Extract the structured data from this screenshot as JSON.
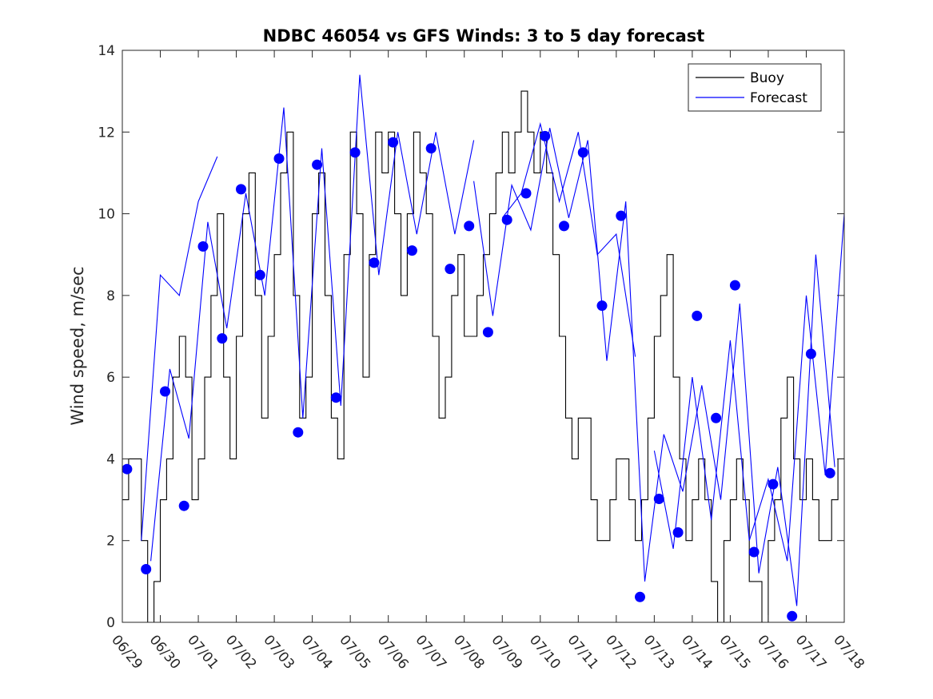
{
  "chart_data": {
    "type": "line",
    "title": "NDBC 46054 vs GFS Winds: 3 to 5 day forecast",
    "xlabel": "",
    "ylabel": "Wind speed, m/sec",
    "x_unit": "date",
    "xlim": [
      "06/29 00:00",
      "07/18 00:00"
    ],
    "ylim": [
      0,
      14
    ],
    "x_ticks": [
      "06/29",
      "06/30",
      "07/01",
      "07/02",
      "07/03",
      "07/04",
      "07/05",
      "07/06",
      "07/07",
      "07/08",
      "07/09",
      "07/10",
      "07/11",
      "07/12",
      "07/13",
      "07/14",
      "07/15",
      "07/16",
      "07/17",
      "07/18"
    ],
    "y_ticks": [
      0,
      2,
      4,
      6,
      8,
      10,
      12,
      14
    ],
    "grid": false,
    "legend": {
      "position": "top-right",
      "entries": [
        "Buoy",
        "Forecast"
      ]
    },
    "colors": {
      "buoy": "#000000",
      "forecast": "#0000ff"
    },
    "series": [
      {
        "name": "Buoy",
        "style": "black stepped line (hourly, 1 m/s resolution)",
        "x": [
          "06/29 00:00",
          "06/29 04:00",
          "06/29 08:00",
          "06/29 12:00",
          "06/29 16:00",
          "06/29 20:00",
          "06/30 00:00",
          "06/30 04:00",
          "06/30 08:00",
          "06/30 12:00",
          "06/30 16:00",
          "06/30 20:00",
          "07/01 00:00",
          "07/01 04:00",
          "07/01 08:00",
          "07/01 12:00",
          "07/01 16:00",
          "07/01 20:00",
          "07/02 00:00",
          "07/02 04:00",
          "07/02 08:00",
          "07/02 12:00",
          "07/02 16:00",
          "07/02 20:00",
          "07/03 00:00",
          "07/03 04:00",
          "07/03 08:00",
          "07/03 12:00",
          "07/03 16:00",
          "07/03 20:00",
          "07/04 00:00",
          "07/04 04:00",
          "07/04 08:00",
          "07/04 12:00",
          "07/04 16:00",
          "07/04 20:00",
          "07/05 00:00",
          "07/05 04:00",
          "07/05 08:00",
          "07/05 12:00",
          "07/05 16:00",
          "07/05 20:00",
          "07/06 00:00",
          "07/06 04:00",
          "07/06 08:00",
          "07/06 12:00",
          "07/06 16:00",
          "07/06 20:00",
          "07/07 00:00",
          "07/07 04:00",
          "07/07 08:00",
          "07/07 12:00",
          "07/07 16:00",
          "07/07 20:00",
          "07/08 00:00",
          "07/08 04:00",
          "07/08 08:00",
          "07/08 12:00",
          "07/08 16:00",
          "07/08 20:00",
          "07/09 00:00",
          "07/09 04:00",
          "07/09 08:00",
          "07/09 12:00",
          "07/09 16:00",
          "07/09 20:00",
          "07/10 00:00",
          "07/10 04:00",
          "07/10 08:00",
          "07/10 12:00",
          "07/10 16:00",
          "07/10 20:00",
          "07/11 00:00",
          "07/11 04:00",
          "07/11 08:00",
          "07/11 12:00",
          "07/11 16:00",
          "07/11 20:00",
          "07/12 00:00",
          "07/12 04:00",
          "07/12 08:00",
          "07/12 12:00",
          "07/12 16:00",
          "07/12 20:00",
          "07/13 00:00",
          "07/13 04:00",
          "07/13 08:00",
          "07/13 12:00",
          "07/13 16:00",
          "07/13 20:00",
          "07/14 00:00",
          "07/14 04:00",
          "07/14 08:00",
          "07/14 12:00",
          "07/14 16:00",
          "07/14 20:00",
          "07/15 00:00",
          "07/15 04:00",
          "07/15 08:00",
          "07/15 12:00",
          "07/15 16:00",
          "07/15 20:00",
          "07/16 00:00",
          "07/16 04:00",
          "07/16 08:00",
          "07/16 12:00",
          "07/16 16:00",
          "07/16 20:00",
          "07/17 00:00",
          "07/17 04:00",
          "07/17 08:00",
          "07/17 12:00",
          "07/17 16:00",
          "07/17 20:00"
        ],
        "y": [
          3,
          4,
          4,
          2,
          0,
          1,
          3,
          4,
          6,
          7,
          6,
          3,
          4,
          6,
          8,
          10,
          6,
          4,
          7,
          10,
          11,
          8,
          5,
          7,
          9,
          11,
          12,
          8,
          5,
          6,
          10,
          11,
          8,
          5,
          4,
          9,
          12,
          10,
          6,
          9,
          12,
          11,
          12,
          10,
          8,
          10,
          12,
          11,
          10,
          7,
          5,
          6,
          8,
          9,
          7,
          7,
          8,
          9,
          10,
          11,
          12,
          11,
          12,
          13,
          12,
          11,
          12,
          11,
          9,
          7,
          5,
          4,
          5,
          5,
          3,
          2,
          2,
          3,
          4,
          4,
          3,
          2,
          3,
          5,
          7,
          8,
          9,
          6,
          4,
          2,
          3,
          4,
          3,
          1,
          0,
          2,
          3,
          4,
          3,
          1,
          1,
          0,
          2,
          3,
          5,
          6,
          4,
          3,
          4,
          3,
          2,
          2,
          3,
          4
        ]
      },
      {
        "name": "Forecast",
        "style": "blue thin lines, one per forecast run",
        "runs": [
          {
            "x": [
              "06/29 12:00",
              "06/30 00:00",
              "06/30 12:00",
              "07/01 00:00",
              "07/01 12:00"
            ],
            "y": [
              2.0,
              8.5,
              8.0,
              10.3,
              11.4
            ]
          },
          {
            "x": [
              "06/29 18:00",
              "06/30 06:00",
              "06/30 18:00",
              "07/01 06:00",
              "07/01 18:00",
              "07/02 06:00",
              "07/02 18:00",
              "07/03 06:00",
              "07/03 18:00",
              "07/04 06:00",
              "07/04 18:00",
              "07/05 06:00",
              "07/05 18:00",
              "07/06 06:00",
              "07/06 18:00",
              "07/07 06:00",
              "07/07 18:00",
              "07/08 06:00"
            ],
            "y": [
              1.5,
              6.2,
              4.5,
              9.8,
              7.2,
              10.5,
              8.0,
              12.6,
              5.0,
              11.6,
              5.3,
              13.4,
              8.5,
              12.0,
              9.5,
              12.0,
              9.5,
              11.8
            ]
          },
          {
            "x": [
              "07/08 06:00",
              "07/08 18:00",
              "07/09 06:00",
              "07/09 18:00",
              "07/10 06:00",
              "07/10 18:00",
              "07/11 06:00",
              "07/11 18:00",
              "07/12 06:00",
              "07/12 18:00",
              "07/13 06:00",
              "07/13 18:00",
              "07/14 06:00",
              "07/14 18:00",
              "07/15 06:00",
              "07/15 18:00",
              "07/16 06:00",
              "07/16 18:00",
              "07/17 06:00",
              "07/17 18:00"
            ],
            "y": [
              10.8,
              7.5,
              10.7,
              9.6,
              12.1,
              9.9,
              11.8,
              6.4,
              10.3,
              1.0,
              4.6,
              3.2,
              5.8,
              3.0,
              7.8,
              1.2,
              3.8,
              0.4,
              9.0,
              3.8
            ]
          },
          {
            "x": [
              "07/09 00:00",
              "07/09 12:00",
              "07/10 00:00",
              "07/10 12:00",
              "07/11 00:00",
              "07/11 12:00",
              "07/12 00:00",
              "07/12 12:00"
            ],
            "y": [
              9.9,
              10.5,
              12.2,
              10.3,
              12.0,
              9.0,
              9.5,
              6.5
            ]
          },
          {
            "x": [
              "07/13 00:00",
              "07/13 12:00",
              "07/14 00:00",
              "07/14 12:00",
              "07/15 00:00",
              "07/15 12:00",
              "07/16 00:00",
              "07/16 12:00",
              "07/17 00:00",
              "07/17 12:00",
              "07/18 00:00"
            ],
            "y": [
              4.2,
              1.8,
              6.0,
              2.5,
              6.9,
              2.0,
              3.5,
              1.5,
              8.0,
              3.6,
              10.0
            ]
          }
        ],
        "markers": {
          "symbol": "filled circle",
          "x": [
            "06/29 03:00",
            "06/29 15:00",
            "06/30 03:00",
            "06/30 15:00",
            "07/01 03:00",
            "07/01 15:00",
            "07/02 03:00",
            "07/02 15:00",
            "07/03 03:00",
            "07/03 15:00",
            "07/04 03:00",
            "07/04 15:00",
            "07/05 03:00",
            "07/05 15:00",
            "07/06 03:00",
            "07/06 15:00",
            "07/07 03:00",
            "07/07 15:00",
            "07/08 03:00",
            "07/08 15:00",
            "07/09 03:00",
            "07/09 15:00",
            "07/10 03:00",
            "07/10 15:00",
            "07/11 03:00",
            "07/11 15:00",
            "07/12 03:00",
            "07/12 15:00",
            "07/13 03:00",
            "07/13 15:00",
            "07/14 03:00",
            "07/14 15:00",
            "07/15 03:00",
            "07/15 15:00",
            "07/16 03:00",
            "07/16 15:00",
            "07/17 03:00",
            "07/17 15:00"
          ],
          "y": [
            3.75,
            1.3,
            5.65,
            2.85,
            9.2,
            6.95,
            10.6,
            8.5,
            11.35,
            4.65,
            11.2,
            5.5,
            11.5,
            8.8,
            11.75,
            9.1,
            11.6,
            8.65,
            9.7,
            7.1,
            9.85,
            10.5,
            11.9,
            9.7,
            11.5,
            7.75,
            9.95,
            0.62,
            3.02,
            2.2,
            7.5,
            5.0,
            8.25,
            1.72,
            3.38,
            0.15,
            6.57,
            3.65
          ]
        }
      }
    ]
  }
}
